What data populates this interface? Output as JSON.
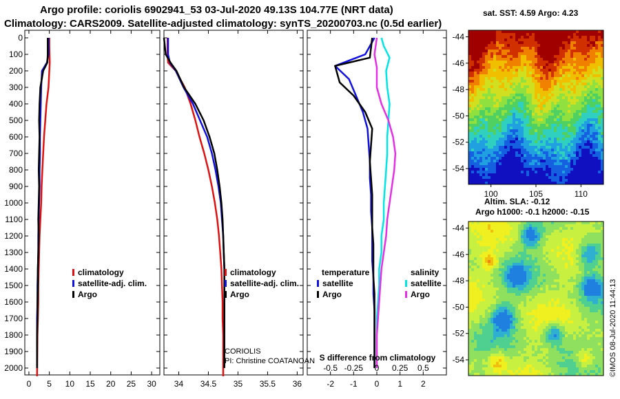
{
  "header": {
    "title_line1": "Argo profile: coriolis 6902941_53 03-Jul-2020 49.13S 104.77E (NRT data)",
    "title_line2": "Climatology: CARS2009. Satellite-adjusted climatology: synTS_20200703.nc (0.5d earlier)"
  },
  "credit": {
    "line1": "CORIOLIS",
    "line2": "PI: Christine COATANOAN"
  },
  "watermark": "©IMOS 08-Jul-2020 11:44:13",
  "colors": {
    "climatology": "#e01010",
    "satellite": "#1010e0",
    "argo": "#000000",
    "satellite_sal": "#00e5e5",
    "argo_sal": "#e52ee5"
  },
  "chart_data": [
    {
      "type": "line",
      "name": "temperature-profile",
      "xlabel": "",
      "ylabel": "depth",
      "xlim": [
        -1,
        32
      ],
      "ylim": [
        2060,
        -10
      ],
      "xticks": [
        0,
        5,
        10,
        15,
        20,
        25,
        30
      ],
      "yticks": [
        0,
        100,
        200,
        300,
        400,
        500,
        600,
        700,
        800,
        900,
        1000,
        1100,
        1200,
        1300,
        1400,
        1500,
        1600,
        1700,
        1800,
        1900,
        2000
      ],
      "legend": [
        "climatology",
        "satellite-adj. clim.",
        "Argo"
      ],
      "series": [
        {
          "name": "climatology",
          "color_key": "climatology",
          "x": [
            5.0,
            5.0,
            5.1,
            5.0,
            4.8,
            4.3,
            4.0,
            3.7,
            3.5,
            3.3,
            3.1,
            3.0,
            2.8,
            2.6,
            2.5,
            2.4,
            2.3,
            2.3,
            2.2,
            2.1,
            2.0
          ],
          "y": [
            0,
            50,
            150,
            200,
            300,
            400,
            500,
            600,
            700,
            800,
            900,
            1000,
            1100,
            1200,
            1300,
            1400,
            1500,
            1600,
            1700,
            1800,
            2050
          ]
        },
        {
          "name": "satellite-adj. clim.",
          "color_key": "satellite",
          "x": [
            4.8,
            4.8,
            4.4,
            3.2,
            3.0,
            2.9,
            2.8,
            2.7,
            2.7,
            2.6,
            2.6,
            2.5,
            2.4,
            2.3,
            2.3,
            2.2,
            2.1,
            2.1,
            2.0,
            2.0,
            2.0
          ],
          "y": [
            0,
            100,
            150,
            200,
            300,
            400,
            500,
            600,
            700,
            800,
            900,
            1000,
            1100,
            1200,
            1300,
            1400,
            1500,
            1600,
            1700,
            1800,
            2000
          ]
        },
        {
          "name": "Argo",
          "color_key": "argo",
          "x": [
            4.6,
            4.6,
            4.5,
            3.5,
            2.8,
            2.6,
            2.5,
            2.6,
            2.5,
            2.4,
            2.5,
            2.4,
            2.3,
            2.4,
            2.3,
            2.2,
            2.2,
            2.1,
            2.1,
            2.0,
            2.0
          ],
          "y": [
            0,
            100,
            150,
            200,
            300,
            400,
            500,
            600,
            700,
            800,
            900,
            1000,
            1100,
            1200,
            1300,
            1400,
            1500,
            1600,
            1700,
            1800,
            2000
          ]
        }
      ]
    },
    {
      "type": "line",
      "name": "salinity-profile",
      "xlabel": "",
      "ylabel": "",
      "xlim": [
        33.75,
        36.1
      ],
      "ylim": [
        2060,
        -10
      ],
      "xticks": [
        34,
        34.5,
        35,
        35.5,
        36
      ],
      "xticklabels": [
        "34",
        "34.5",
        "35",
        "35.5",
        "36"
      ],
      "legend": [
        "climatology",
        "satellite-adj. clim.",
        "Argo"
      ],
      "series": [
        {
          "name": "climatology",
          "color_key": "climatology",
          "x": [
            33.81,
            33.81,
            33.82,
            33.95,
            34.1,
            34.2,
            34.28,
            34.35,
            34.43,
            34.5,
            34.56,
            34.61,
            34.65,
            34.68,
            34.7,
            34.72,
            34.73,
            34.74,
            34.74,
            34.75,
            34.75
          ],
          "y": [
            0,
            100,
            150,
            200,
            300,
            400,
            500,
            600,
            700,
            800,
            900,
            1000,
            1100,
            1200,
            1300,
            1400,
            1500,
            1600,
            1700,
            1800,
            2050
          ]
        },
        {
          "name": "satellite-adj. clim.",
          "color_key": "satellite",
          "x": [
            33.82,
            33.82,
            33.85,
            33.95,
            34.08,
            34.24,
            34.36,
            34.48,
            34.56,
            34.62,
            34.67,
            34.71,
            34.73,
            34.75,
            34.76,
            34.77,
            34.77,
            34.77,
            34.77,
            34.77,
            34.77
          ],
          "y": [
            0,
            100,
            150,
            200,
            300,
            400,
            500,
            600,
            700,
            800,
            900,
            1000,
            1100,
            1200,
            1300,
            1400,
            1500,
            1600,
            1700,
            1800,
            2000
          ]
        },
        {
          "name": "Argo",
          "color_key": "argo",
          "x": [
            33.75,
            33.78,
            33.86,
            33.96,
            34.09,
            34.28,
            34.42,
            34.52,
            34.6,
            34.65,
            34.69,
            34.72,
            34.74,
            34.75,
            34.76,
            34.77,
            34.77,
            34.77,
            34.77,
            34.77,
            34.77
          ],
          "y": [
            0,
            100,
            150,
            200,
            300,
            400,
            500,
            600,
            700,
            800,
            900,
            1000,
            1100,
            1200,
            1300,
            1400,
            1500,
            1600,
            1700,
            1800,
            2000
          ]
        }
      ]
    },
    {
      "type": "line",
      "name": "difference-profile",
      "xlabel": "S difference from climatology",
      "xlim": [
        -3.0,
        3.0
      ],
      "ylim": [
        2060,
        -10
      ],
      "xticks": [
        -2,
        -1,
        0,
        1,
        2
      ],
      "xticks_top": [
        -2,
        -1,
        0,
        1,
        2
      ],
      "xticks_top_labels": [
        "-0.5",
        "-0.25",
        "0",
        "0.25",
        "0.5"
      ],
      "legend": [
        "temperature",
        "satellite",
        "Argo",
        "salinity",
        "satellite",
        "Argo"
      ],
      "series": [
        {
          "name": "temperature satellite",
          "color_key": "satellite",
          "x": [
            -0.1,
            -0.5,
            -1.8,
            -1.2,
            -0.9,
            -0.6,
            -0.4,
            -0.35,
            -0.3,
            -0.3,
            -0.25,
            -0.25,
            -0.2,
            -0.2,
            -0.2,
            -0.15,
            -0.15,
            -0.1,
            -0.1,
            -0.1,
            -0.1
          ],
          "y": [
            0,
            100,
            170,
            250,
            350,
            450,
            550,
            650,
            750,
            850,
            950,
            1050,
            1150,
            1250,
            1350,
            1450,
            1550,
            1650,
            1750,
            1850,
            2000
          ]
        },
        {
          "name": "temperature Argo",
          "color_key": "argo",
          "x": [
            -0.2,
            -0.3,
            -1.8,
            -1.6,
            -1.0,
            -0.5,
            -0.2,
            -0.25,
            -0.3,
            -0.25,
            -0.2,
            -0.2,
            -0.2,
            -0.15,
            -0.15,
            -0.15,
            -0.1,
            -0.1,
            -0.1,
            -0.1,
            -0.1
          ],
          "y": [
            0,
            120,
            170,
            270,
            350,
            450,
            550,
            650,
            750,
            850,
            950,
            1050,
            1150,
            1250,
            1350,
            1450,
            1550,
            1650,
            1750,
            1850,
            2000
          ]
        },
        {
          "name": "salinity satellite",
          "color_key": "satellite_sal",
          "x": [
            0.2,
            0.3,
            0.55,
            0.4,
            0.45,
            0.55,
            0.5,
            0.45,
            0.45,
            0.4,
            0.35,
            0.3,
            0.3,
            0.2,
            0.2,
            0.1,
            0.1,
            0.05,
            0.0,
            0.0,
            0.0
          ],
          "y": [
            0,
            50,
            120,
            200,
            300,
            400,
            500,
            600,
            700,
            800,
            900,
            1000,
            1100,
            1200,
            1300,
            1400,
            1500,
            1600,
            1700,
            1800,
            2000
          ]
        },
        {
          "name": "salinity Argo",
          "color_key": "argo_sal",
          "x": [
            0.0,
            -0.1,
            0.0,
            0.0,
            0.2,
            0.5,
            0.7,
            0.8,
            0.75,
            0.65,
            0.55,
            0.45,
            0.4,
            0.3,
            0.2,
            0.15,
            0.1,
            0.05,
            0.0,
            0.0,
            0.0
          ],
          "y": [
            0,
            100,
            180,
            300,
            400,
            500,
            600,
            700,
            800,
            900,
            1000,
            1100,
            1200,
            1300,
            1400,
            1500,
            1600,
            1700,
            1800,
            1900,
            2000
          ]
        }
      ]
    },
    {
      "type": "heatmap",
      "name": "sst-map",
      "title": "sat. SST: 4.59 Argo: 4.23",
      "xticks": [
        100,
        105,
        110
      ],
      "yticks": [
        -44,
        -46,
        -48,
        -50,
        -52,
        -54
      ],
      "xlim": [
        97.5,
        112.5
      ],
      "ylim": [
        -55.2,
        -43.5
      ]
    },
    {
      "type": "heatmap",
      "name": "sla-map",
      "title_line1": "Altim. SLA: -0.12",
      "title_line2": "Argo h1000: -0.1 h2000: -0.15",
      "yticks": [
        -44,
        -46,
        -48,
        -50,
        -52,
        -54
      ],
      "ylim": [
        -55.2,
        -43.5
      ]
    }
  ]
}
